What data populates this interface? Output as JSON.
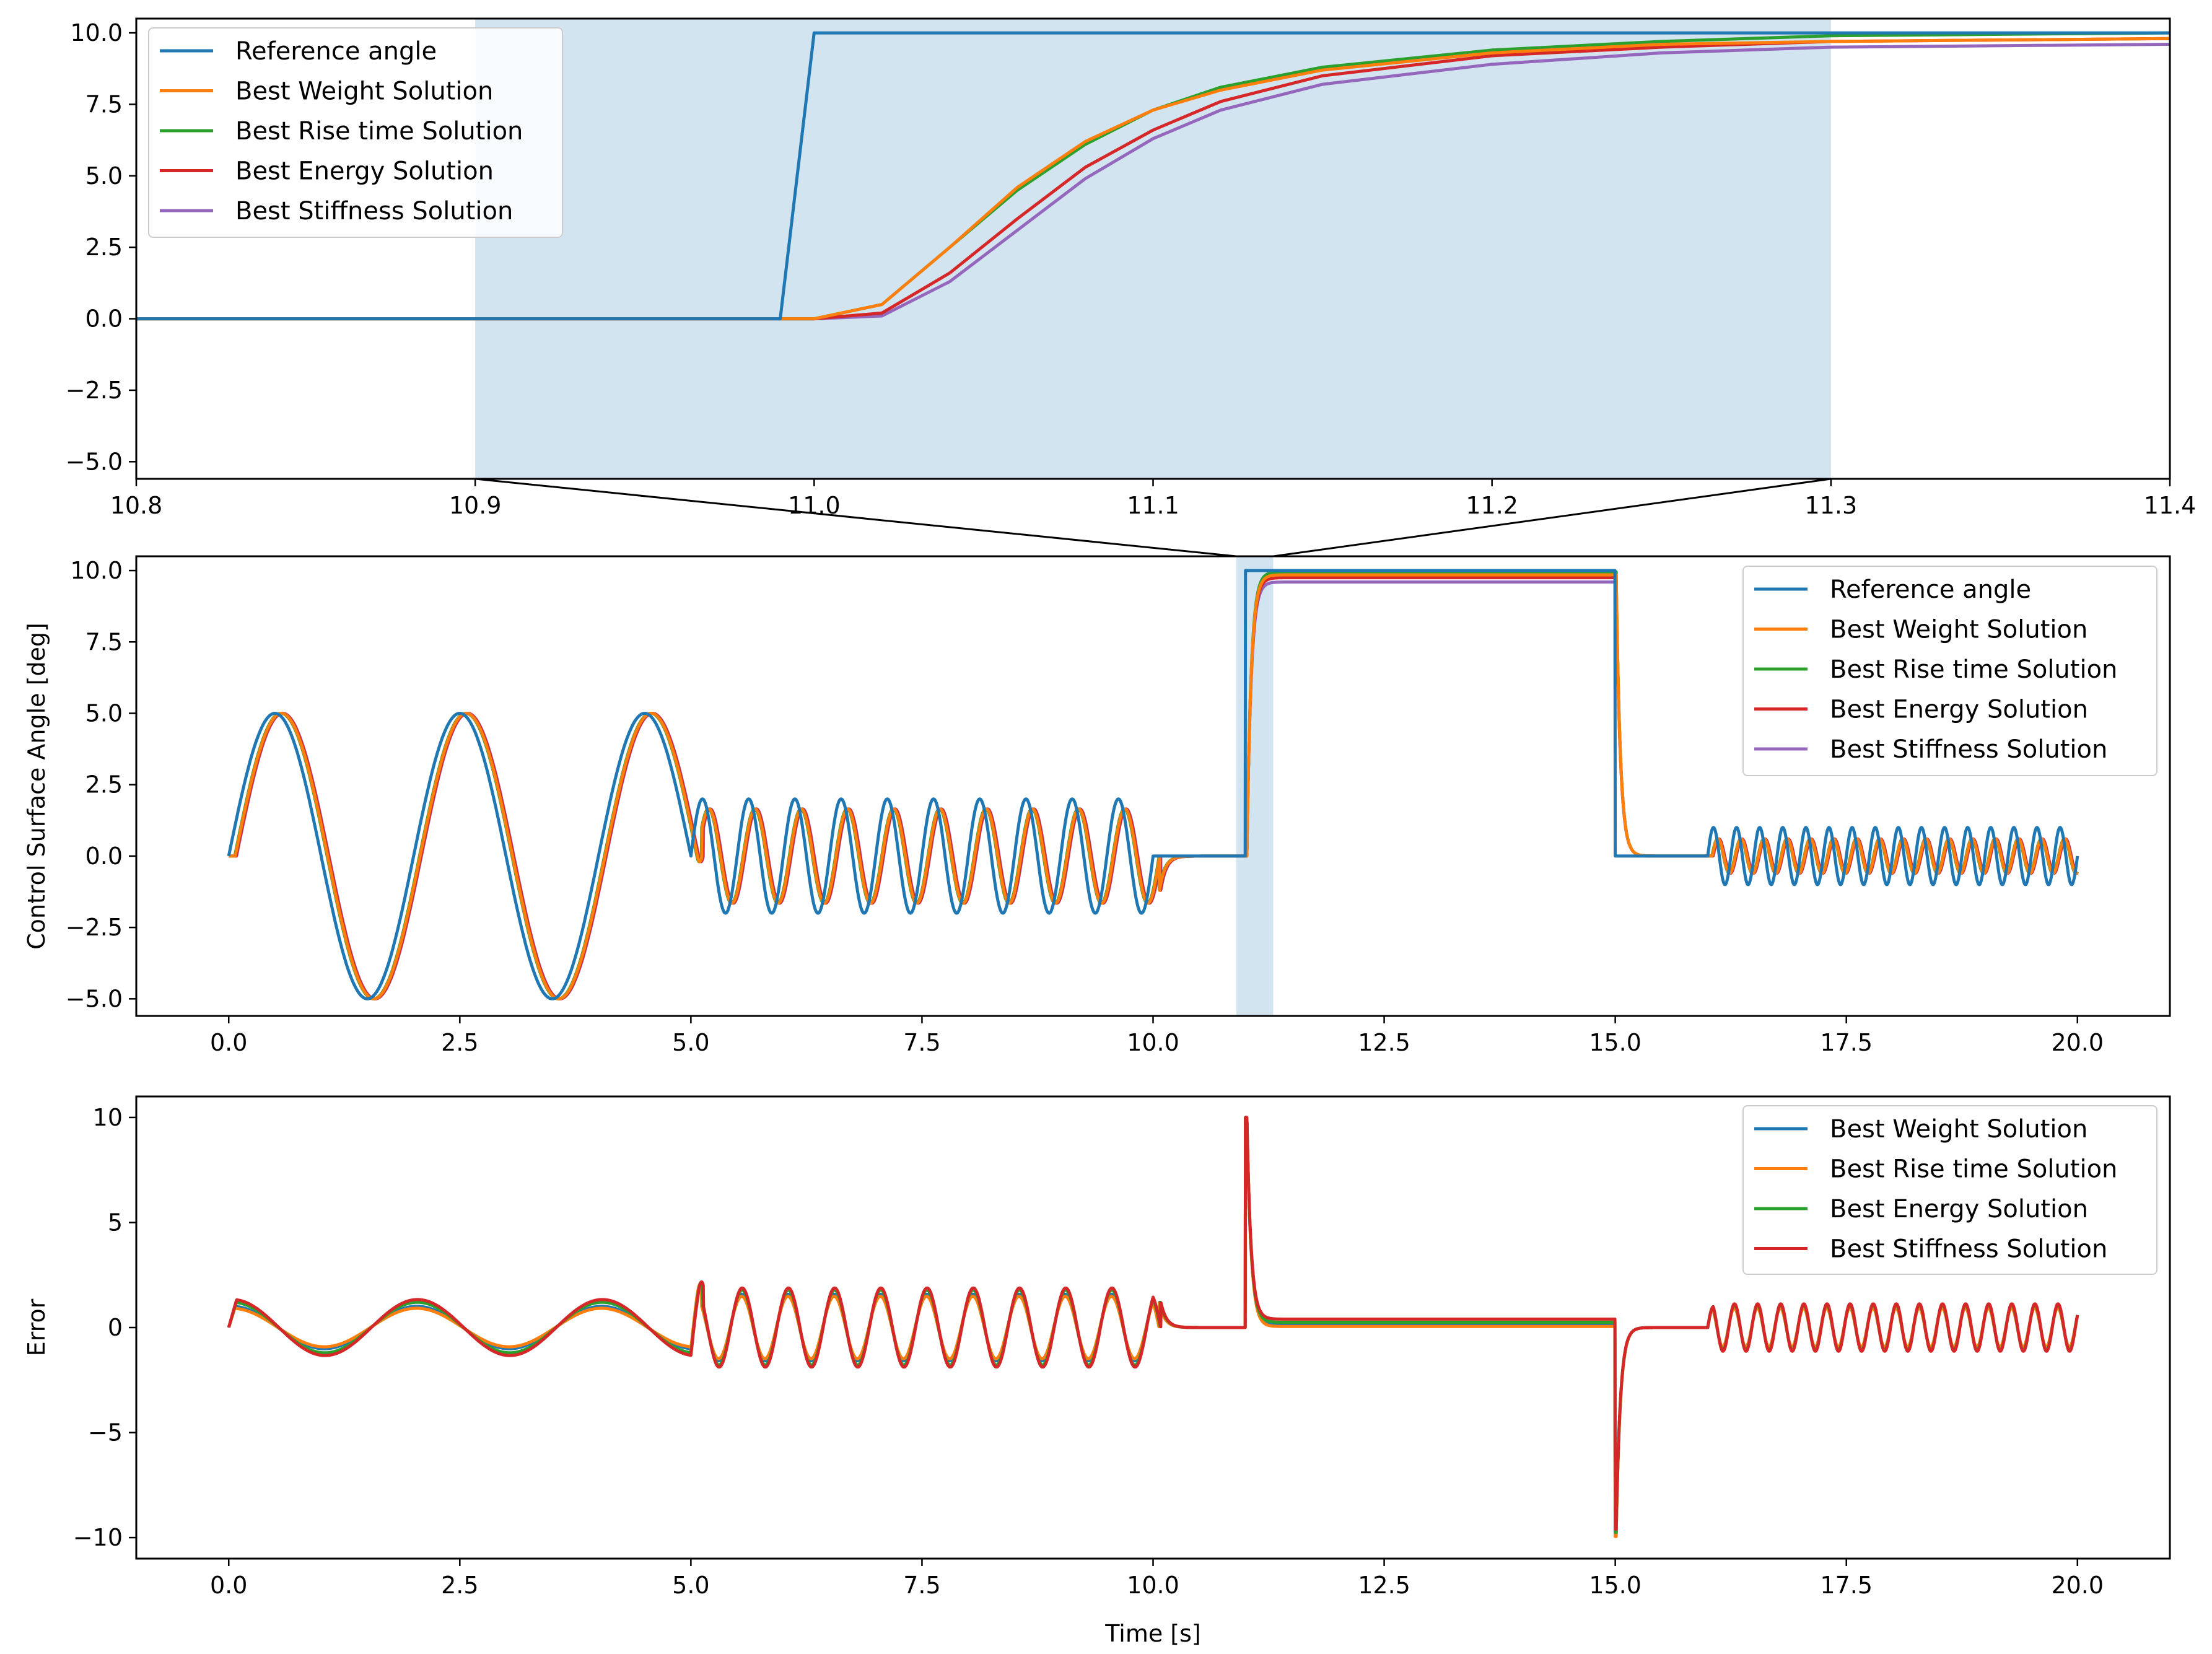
{
  "chart_data": [
    {
      "type": "line",
      "title": "",
      "xlabel": "",
      "ylabel": "",
      "xlim": [
        10.8,
        11.4
      ],
      "ylim": [
        -5.6,
        10.5
      ],
      "xticks": [
        "10.8",
        "10.9",
        "11.0",
        "11.1",
        "11.2",
        "11.3",
        "11.4"
      ],
      "xtick_values": [
        10.8,
        10.9,
        11.0,
        11.1,
        11.2,
        11.3,
        11.4
      ],
      "yticks": [
        "10.0",
        "7.5",
        "5.0",
        "2.5",
        "0.0",
        "−2.5",
        "−5.0"
      ],
      "ytick_values": [
        10,
        7.5,
        5,
        2.5,
        0,
        -2.5,
        -5
      ],
      "shaded_span": [
        10.9,
        11.3
      ],
      "legend_position": "upper-left",
      "series": [
        {
          "name": "Reference angle",
          "color": "#1f77b4",
          "x": [
            10.8,
            10.99,
            11.0,
            11.4
          ],
          "y": [
            0,
            0,
            10,
            10
          ]
        },
        {
          "name": "Best Weight Solution",
          "color": "#ff7f0e",
          "x": [
            10.8,
            11.0,
            11.02,
            11.04,
            11.06,
            11.08,
            11.1,
            11.12,
            11.15,
            11.2,
            11.25,
            11.3,
            11.4
          ],
          "y": [
            0,
            0,
            0.5,
            2.5,
            4.6,
            6.2,
            7.3,
            8.0,
            8.7,
            9.3,
            9.6,
            9.7,
            9.8
          ]
        },
        {
          "name": "Best Rise time Solution",
          "color": "#2ca02c",
          "x": [
            10.8,
            11.0,
            11.02,
            11.04,
            11.06,
            11.08,
            11.1,
            11.12,
            11.15,
            11.2,
            11.25,
            11.3,
            11.4
          ],
          "y": [
            0,
            0,
            0.5,
            2.5,
            4.5,
            6.1,
            7.3,
            8.1,
            8.8,
            9.4,
            9.7,
            9.9,
            10.0
          ]
        },
        {
          "name": "Best Energy Solution",
          "color": "#d62728",
          "x": [
            10.8,
            11.0,
            11.02,
            11.04,
            11.06,
            11.08,
            11.1,
            11.12,
            11.15,
            11.2,
            11.25,
            11.3,
            11.4
          ],
          "y": [
            0,
            0,
            0.2,
            1.6,
            3.5,
            5.3,
            6.6,
            7.6,
            8.5,
            9.2,
            9.5,
            9.7,
            9.8
          ]
        },
        {
          "name": "Best Stiffness Solution",
          "color": "#9467bd",
          "x": [
            10.8,
            11.0,
            11.02,
            11.04,
            11.06,
            11.08,
            11.1,
            11.12,
            11.15,
            11.2,
            11.25,
            11.3,
            11.4
          ],
          "y": [
            0,
            0,
            0.1,
            1.3,
            3.1,
            4.9,
            6.3,
            7.3,
            8.2,
            8.9,
            9.3,
            9.5,
            9.6
          ]
        }
      ]
    },
    {
      "type": "line",
      "title": "",
      "xlabel": "",
      "ylabel": "Control Surface Angle [deg]",
      "xlim": [
        -1,
        21
      ],
      "ylim": [
        -5.6,
        10.5
      ],
      "xticks": [
        "0.0",
        "2.5",
        "5.0",
        "7.5",
        "10.0",
        "12.5",
        "15.0",
        "17.5",
        "20.0"
      ],
      "xtick_values": [
        0,
        2.5,
        5,
        7.5,
        10,
        12.5,
        15,
        17.5,
        20
      ],
      "yticks": [
        "10.0",
        "7.5",
        "5.0",
        "2.5",
        "0.0",
        "−2.5",
        "−5.0"
      ],
      "ytick_values": [
        10,
        7.5,
        5,
        2.5,
        0,
        -2.5,
        -5
      ],
      "shaded_span": [
        10.9,
        11.3
      ],
      "legend_position": "upper-right",
      "signal_description": "0-5 s: sine amplitude 5, period 2 s; 5-10 s: sine amplitude 2, period 0.5 s; 10-11 s: 0; 11-15 s: step to 10; 15-16 s: 0; 16-20 s: sine amplitude 1, period 0.25 s",
      "series": [
        {
          "name": "Reference angle",
          "color": "#1f77b4",
          "lag_s": 0,
          "steady_level": 10.0
        },
        {
          "name": "Best Weight Solution",
          "color": "#ff7f0e",
          "lag_s": 0.07,
          "steady_level": 9.85
        },
        {
          "name": "Best Rise time Solution",
          "color": "#2ca02c",
          "lag_s": 0.065,
          "steady_level": 9.95
        },
        {
          "name": "Best Energy Solution",
          "color": "#d62728",
          "lag_s": 0.08,
          "steady_level": 9.75
        },
        {
          "name": "Best Stiffness Solution",
          "color": "#9467bd",
          "lag_s": 0.085,
          "steady_level": 9.6
        }
      ]
    },
    {
      "type": "line",
      "title": "",
      "xlabel": "Time [s]",
      "ylabel": "Error",
      "xlim": [
        -1,
        21
      ],
      "ylim": [
        -11,
        11
      ],
      "xticks": [
        "0.0",
        "2.5",
        "5.0",
        "7.5",
        "10.0",
        "12.5",
        "15.0",
        "17.5",
        "20.0"
      ],
      "xtick_values": [
        0,
        2.5,
        5,
        7.5,
        10,
        12.5,
        15,
        17.5,
        20
      ],
      "yticks": [
        "10",
        "5",
        "0",
        "−5",
        "−10"
      ],
      "ytick_values": [
        10,
        5,
        0,
        -5,
        -10
      ],
      "legend_position": "upper-right",
      "series": [
        {
          "name": "Best Weight Solution",
          "color": "#1f77b4"
        },
        {
          "name": "Best Rise time Solution",
          "color": "#ff7f0e"
        },
        {
          "name": "Best Energy Solution",
          "color": "#2ca02c"
        },
        {
          "name": "Best Stiffness Solution",
          "color": "#d62728"
        }
      ]
    }
  ]
}
